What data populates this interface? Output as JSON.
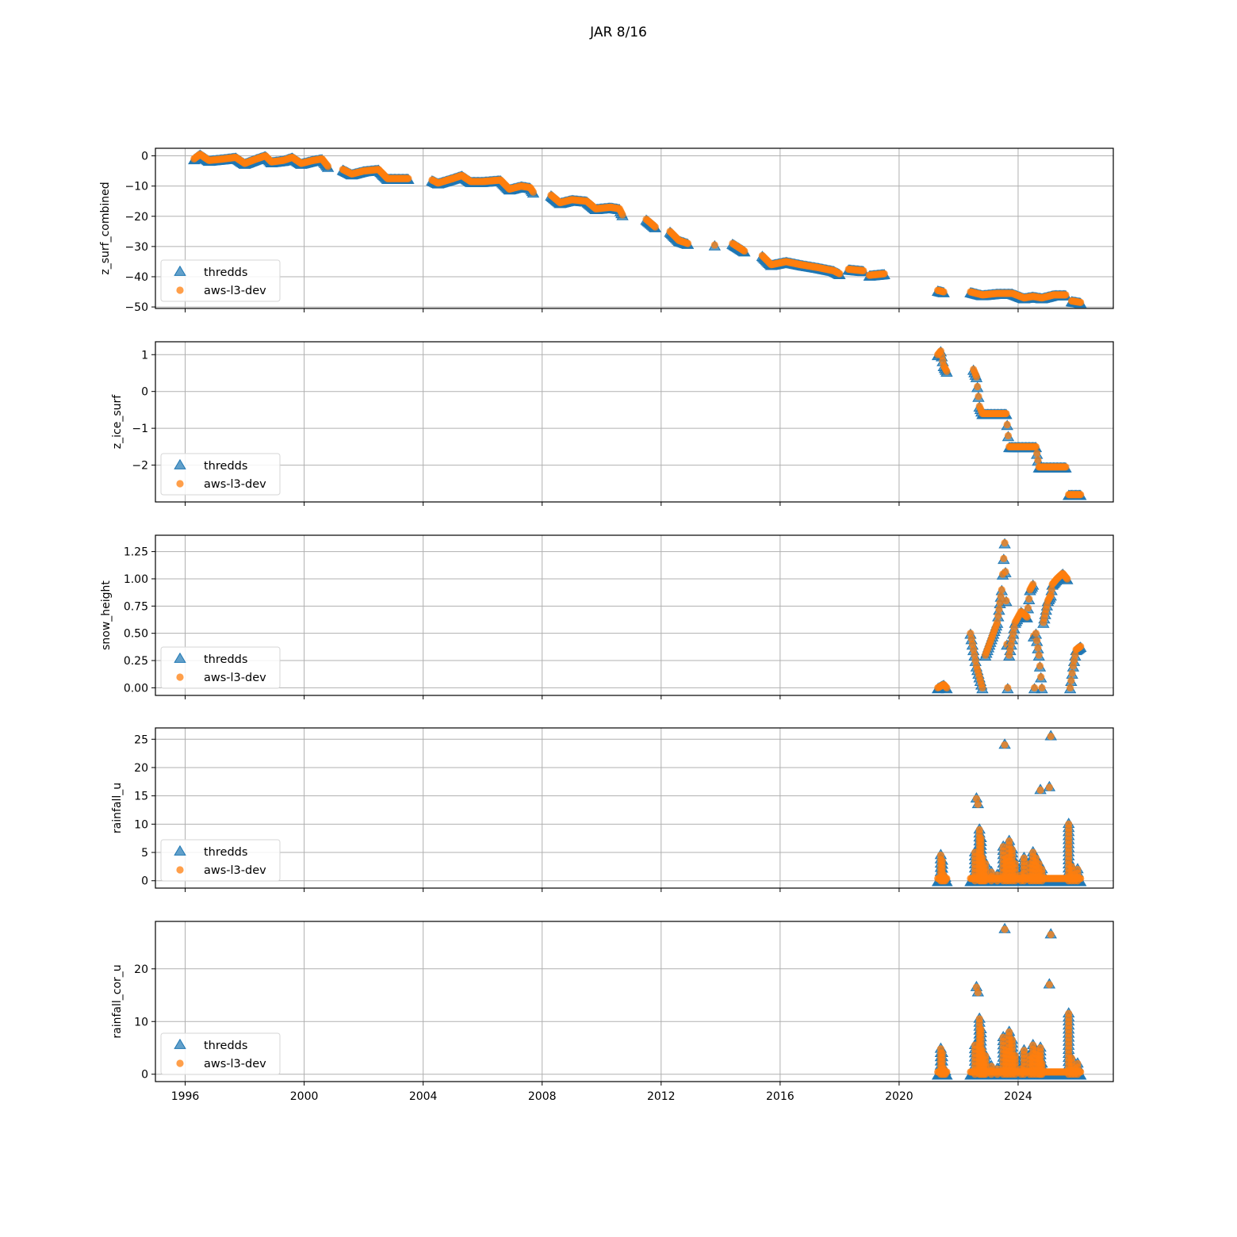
{
  "title": "JAR 8/16",
  "colors": {
    "thredds": "#1f77b4",
    "aws": "#ff7f0e",
    "grid": "#b0b0b0"
  },
  "legend": {
    "placement": "lower-left",
    "entries": [
      "thredds",
      "aws-l3-dev"
    ]
  },
  "x_axis": {
    "ticks": [
      "1996",
      "2000",
      "2004",
      "2008",
      "2012",
      "2016",
      "2020",
      "2024"
    ],
    "range": [
      1995.0,
      2027.2
    ]
  },
  "chart_data": [
    {
      "type": "scatter",
      "ylabel": "z_surf_combined",
      "ylim": [
        -50.5,
        2.5
      ],
      "yticks": [
        0,
        -10,
        -20,
        -30,
        -40,
        -50
      ],
      "grid": true,
      "series": [
        {
          "name": "thredds",
          "marker": "triangle"
        },
        {
          "name": "aws-l3-dev",
          "marker": "circle"
        }
      ],
      "segments": [
        [
          [
            1996.3,
            -1.0
          ],
          [
            1996.5,
            0.5
          ],
          [
            1996.8,
            -1.5
          ],
          [
            1997.3,
            -1.0
          ],
          [
            1997.7,
            -0.5
          ],
          [
            1998.0,
            -2.5
          ],
          [
            1998.4,
            -1.0
          ],
          [
            1998.7,
            0.0
          ],
          [
            1998.9,
            -2.0
          ],
          [
            1999.3,
            -1.5
          ],
          [
            1999.6,
            -0.5
          ],
          [
            1999.9,
            -2.5
          ],
          [
            2000.3,
            -1.5
          ],
          [
            2000.6,
            -1.0
          ],
          [
            2000.8,
            -3.5
          ]
        ],
        [
          [
            2001.3,
            -4.5
          ],
          [
            2001.6,
            -6.0
          ],
          [
            2002.0,
            -5.0
          ],
          [
            2002.5,
            -4.5
          ],
          [
            2002.8,
            -7.5
          ],
          [
            2003.2,
            -7.5
          ],
          [
            2003.5,
            -7.5
          ]
        ],
        [
          [
            2004.3,
            -8.0
          ],
          [
            2004.5,
            -9.0
          ],
          [
            2005.0,
            -7.5
          ],
          [
            2005.3,
            -6.5
          ],
          [
            2005.6,
            -8.5
          ],
          [
            2006.0,
            -8.5
          ],
          [
            2006.6,
            -8.0
          ],
          [
            2006.9,
            -11.0
          ],
          [
            2007.3,
            -10.0
          ],
          [
            2007.6,
            -10.5
          ],
          [
            2007.7,
            -12.0
          ]
        ],
        [
          [
            2008.3,
            -13.0
          ],
          [
            2008.6,
            -15.5
          ],
          [
            2009.0,
            -14.5
          ],
          [
            2009.5,
            -15.0
          ],
          [
            2009.8,
            -17.5
          ],
          [
            2010.3,
            -17.0
          ],
          [
            2010.6,
            -17.5
          ],
          [
            2010.7,
            -19.5
          ]
        ],
        [
          [
            2011.5,
            -21.0
          ],
          [
            2011.8,
            -23.5
          ]
        ],
        [
          [
            2012.3,
            -25.0
          ],
          [
            2012.6,
            -28.0
          ],
          [
            2012.9,
            -29.0
          ]
        ],
        [
          [
            2013.8,
            -29.5
          ]
        ],
        [
          [
            2014.4,
            -29.0
          ],
          [
            2014.8,
            -31.5
          ]
        ],
        [
          [
            2015.4,
            -33.0
          ],
          [
            2015.7,
            -36.0
          ],
          [
            2016.2,
            -35.0
          ],
          [
            2016.7,
            -36.0
          ],
          [
            2017.3,
            -37.0
          ],
          [
            2017.8,
            -38.0
          ],
          [
            2018.0,
            -39.0
          ]
        ],
        [
          [
            2018.3,
            -37.5
          ],
          [
            2018.8,
            -38.0
          ]
        ],
        [
          [
            2019.0,
            -39.5
          ],
          [
            2019.5,
            -39.0
          ]
        ],
        [
          [
            2021.3,
            -44.5
          ],
          [
            2021.5,
            -45.0
          ]
        ],
        [
          [
            2022.4,
            -45.0
          ],
          [
            2022.8,
            -46.0
          ],
          [
            2023.3,
            -45.5
          ],
          [
            2023.8,
            -45.5
          ],
          [
            2024.2,
            -47.0
          ],
          [
            2024.5,
            -46.5
          ],
          [
            2024.8,
            -47.0
          ],
          [
            2025.2,
            -46.0
          ],
          [
            2025.6,
            -46.0
          ]
        ],
        [
          [
            2025.8,
            -48.0
          ],
          [
            2026.1,
            -48.5
          ]
        ]
      ]
    },
    {
      "type": "scatter",
      "ylabel": "z_ice_surf",
      "ylim": [
        -3.0,
        1.35
      ],
      "yticks": [
        1,
        0,
        -1,
        -2
      ],
      "grid": true,
      "series": [
        {
          "name": "thredds",
          "marker": "triangle"
        },
        {
          "name": "aws-l3-dev",
          "marker": "circle"
        }
      ],
      "segments": [
        [
          [
            2021.3,
            1.0
          ],
          [
            2021.4,
            1.1
          ],
          [
            2021.5,
            0.7
          ],
          [
            2021.6,
            0.55
          ]
        ],
        [
          [
            2022.5,
            0.6
          ],
          [
            2022.6,
            0.4
          ],
          [
            2022.7,
            -0.4
          ],
          [
            2022.8,
            -0.6
          ],
          [
            2023.6,
            -0.6
          ],
          [
            2023.7,
            -1.5
          ],
          [
            2024.6,
            -1.5
          ],
          [
            2024.7,
            -2.05
          ],
          [
            2025.6,
            -2.05
          ]
        ],
        [
          [
            2025.7,
            -2.8
          ],
          [
            2026.1,
            -2.8
          ]
        ]
      ]
    },
    {
      "type": "scatter",
      "ylabel": "snow_height",
      "ylim": [
        -0.07,
        1.4
      ],
      "yticks": [
        0.0,
        0.25,
        0.5,
        0.75,
        1.0,
        1.25
      ],
      "ytick_labels": [
        "0.00",
        "0.25",
        "0.50",
        "0.75",
        "1.00",
        "1.25"
      ],
      "grid": true,
      "series": [
        {
          "name": "thredds",
          "marker": "triangle"
        },
        {
          "name": "aws-l3-dev",
          "marker": "circle"
        }
      ],
      "segments": [
        [
          [
            2021.3,
            0.0
          ],
          [
            2021.5,
            0.03
          ],
          [
            2021.6,
            0.0
          ]
        ],
        [
          [
            2022.4,
            0.5
          ],
          [
            2022.6,
            0.2
          ],
          [
            2022.7,
            0.1
          ],
          [
            2022.8,
            0.0
          ]
        ],
        [
          [
            2022.9,
            0.3
          ],
          [
            2023.1,
            0.45
          ],
          [
            2023.3,
            0.6
          ],
          [
            2023.45,
            0.9
          ],
          [
            2023.55,
            1.33
          ],
          [
            2023.6,
            0.8
          ],
          [
            2023.65,
            0.0
          ]
        ],
        [
          [
            2023.7,
            0.3
          ],
          [
            2023.9,
            0.6
          ],
          [
            2024.1,
            0.7
          ],
          [
            2024.3,
            0.65
          ],
          [
            2024.4,
            0.9
          ],
          [
            2024.5,
            0.95
          ],
          [
            2024.55,
            0.0
          ]
        ],
        [
          [
            2024.6,
            0.5
          ],
          [
            2024.7,
            0.3
          ],
          [
            2024.8,
            0.0
          ]
        ],
        [
          [
            2024.85,
            0.6
          ],
          [
            2025.0,
            0.8
          ],
          [
            2025.1,
            0.85
          ],
          [
            2025.15,
            0.95
          ],
          [
            2025.3,
            1.0
          ],
          [
            2025.5,
            1.05
          ],
          [
            2025.65,
            1.0
          ]
        ],
        [
          [
            2025.75,
            0.0
          ],
          [
            2025.85,
            0.2
          ],
          [
            2025.95,
            0.35
          ],
          [
            2026.1,
            0.38
          ]
        ]
      ]
    },
    {
      "type": "scatter",
      "ylabel": "rainfall_u",
      "ylim": [
        -1.3,
        27.0
      ],
      "yticks": [
        0,
        5,
        10,
        15,
        20,
        25
      ],
      "grid": true,
      "series": [
        {
          "name": "thredds",
          "marker": "triangle"
        },
        {
          "name": "aws-l3-dev",
          "marker": "circle"
        }
      ],
      "baseline_segments": [
        [
          2021.3,
          2021.6
        ],
        [
          2022.4,
          2026.1
        ]
      ],
      "points": [
        [
          2021.4,
          4.5
        ],
        [
          2021.45,
          3.5
        ],
        [
          2021.5,
          1.0
        ],
        [
          2021.55,
          0.5
        ],
        [
          2022.55,
          5.0
        ],
        [
          2022.6,
          14.5
        ],
        [
          2022.65,
          13.5
        ],
        [
          2022.7,
          9.0
        ],
        [
          2022.75,
          7.5
        ],
        [
          2022.8,
          4.0
        ],
        [
          2022.85,
          2.0
        ],
        [
          2022.9,
          3.0
        ],
        [
          2023.1,
          1.5
        ],
        [
          2023.3,
          1.0
        ],
        [
          2023.5,
          6.0
        ],
        [
          2023.55,
          24.0
        ],
        [
          2023.6,
          4.0
        ],
        [
          2023.7,
          7.0
        ],
        [
          2023.8,
          5.5
        ],
        [
          2023.9,
          3.0
        ],
        [
          2024.1,
          1.0
        ],
        [
          2024.2,
          4.0
        ],
        [
          2024.4,
          3.0
        ],
        [
          2024.5,
          5.0
        ],
        [
          2024.6,
          4.0
        ],
        [
          2024.7,
          3.0
        ],
        [
          2024.75,
          16.0
        ],
        [
          2024.8,
          2.0
        ],
        [
          2025.05,
          16.5
        ],
        [
          2025.1,
          25.5
        ],
        [
          2025.7,
          10.0
        ],
        [
          2025.8,
          2.5
        ],
        [
          2025.9,
          1.0
        ],
        [
          2026.0,
          2.0
        ]
      ]
    },
    {
      "type": "scatter",
      "ylabel": "rainfall_cor_u",
      "ylim": [
        -1.4,
        29.0
      ],
      "yticks": [
        0,
        10,
        20
      ],
      "grid": true,
      "series": [
        {
          "name": "thredds",
          "marker": "triangle"
        },
        {
          "name": "aws-l3-dev",
          "marker": "circle"
        }
      ],
      "baseline_segments": [
        [
          2021.3,
          2021.6
        ],
        [
          2022.4,
          2026.1
        ]
      ],
      "points": [
        [
          2021.4,
          4.8
        ],
        [
          2021.45,
          4.0
        ],
        [
          2021.5,
          1.0
        ],
        [
          2021.55,
          0.5
        ],
        [
          2022.55,
          5.5
        ],
        [
          2022.6,
          16.5
        ],
        [
          2022.65,
          15.5
        ],
        [
          2022.7,
          10.5
        ],
        [
          2022.75,
          8.5
        ],
        [
          2022.8,
          4.5
        ],
        [
          2022.85,
          2.0
        ],
        [
          2022.9,
          3.5
        ],
        [
          2023.1,
          1.5
        ],
        [
          2023.3,
          1.0
        ],
        [
          2023.5,
          7.0
        ],
        [
          2023.55,
          27.5
        ],
        [
          2023.6,
          4.5
        ],
        [
          2023.7,
          8.0
        ],
        [
          2023.8,
          6.5
        ],
        [
          2023.9,
          3.5
        ],
        [
          2024.1,
          1.0
        ],
        [
          2024.2,
          4.5
        ],
        [
          2024.4,
          3.5
        ],
        [
          2024.5,
          5.5
        ],
        [
          2024.6,
          4.5
        ],
        [
          2024.7,
          3.5
        ],
        [
          2024.75,
          5.0
        ],
        [
          2024.8,
          2.0
        ],
        [
          2025.05,
          17.0
        ],
        [
          2025.1,
          26.5
        ],
        [
          2025.7,
          11.5
        ],
        [
          2025.8,
          3.0
        ],
        [
          2025.9,
          1.0
        ],
        [
          2026.0,
          2.0
        ]
      ]
    }
  ]
}
